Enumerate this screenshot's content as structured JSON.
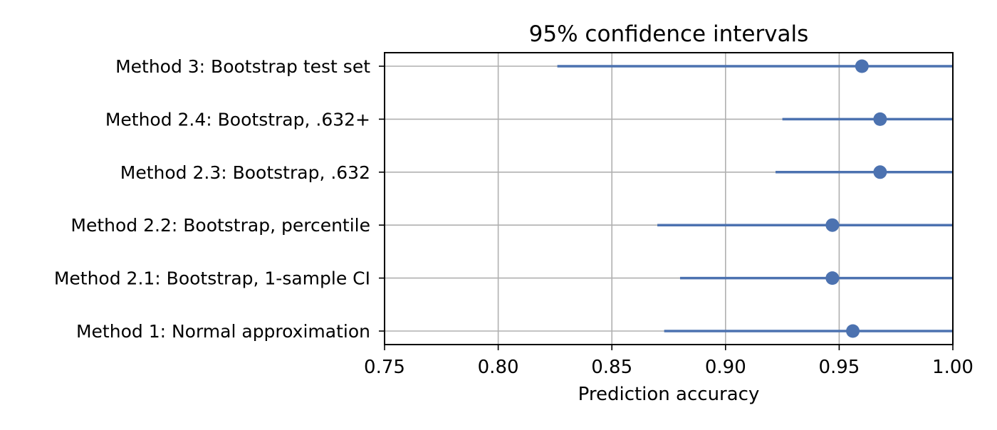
{
  "chart_data": {
    "type": "scatter",
    "title": "95% confidence intervals",
    "xlabel": "Prediction accuracy",
    "ylabel": "",
    "xlim": [
      0.75,
      1.0
    ],
    "xticks": [
      0.75,
      0.8,
      0.85,
      0.9,
      0.95,
      1.0
    ],
    "xtick_labels": [
      "0.75",
      "0.80",
      "0.85",
      "0.90",
      "0.95",
      "1.00"
    ],
    "grid": true,
    "colors": {
      "series": "#4C72B0",
      "grid": "#b0b0b0",
      "axis": "#000000"
    },
    "categories": [
      "Method 3: Bootstrap test set",
      "Method 2.4: Bootstrap, .632+",
      "Method 2.3: Bootstrap, .632",
      "Method 2.2: Bootstrap, percentile",
      "Method 2.1: Bootstrap, 1-sample CI",
      "Method 1: Normal approximation"
    ],
    "points": [
      {
        "label": "Method 3: Bootstrap test set",
        "estimate": 0.96,
        "ci_lower": 0.826,
        "ci_upper": 1.0
      },
      {
        "label": "Method 2.4: Bootstrap, .632+",
        "estimate": 0.968,
        "ci_lower": 0.925,
        "ci_upper": 1.0
      },
      {
        "label": "Method 2.3: Bootstrap, .632",
        "estimate": 0.968,
        "ci_lower": 0.922,
        "ci_upper": 1.0
      },
      {
        "label": "Method 2.2: Bootstrap, percentile",
        "estimate": 0.947,
        "ci_lower": 0.87,
        "ci_upper": 1.0
      },
      {
        "label": "Method 2.1: Bootstrap, 1-sample CI",
        "estimate": 0.947,
        "ci_lower": 0.88,
        "ci_upper": 1.0
      },
      {
        "label": "Method 1: Normal approximation",
        "estimate": 0.956,
        "ci_lower": 0.873,
        "ci_upper": 1.0
      }
    ]
  }
}
